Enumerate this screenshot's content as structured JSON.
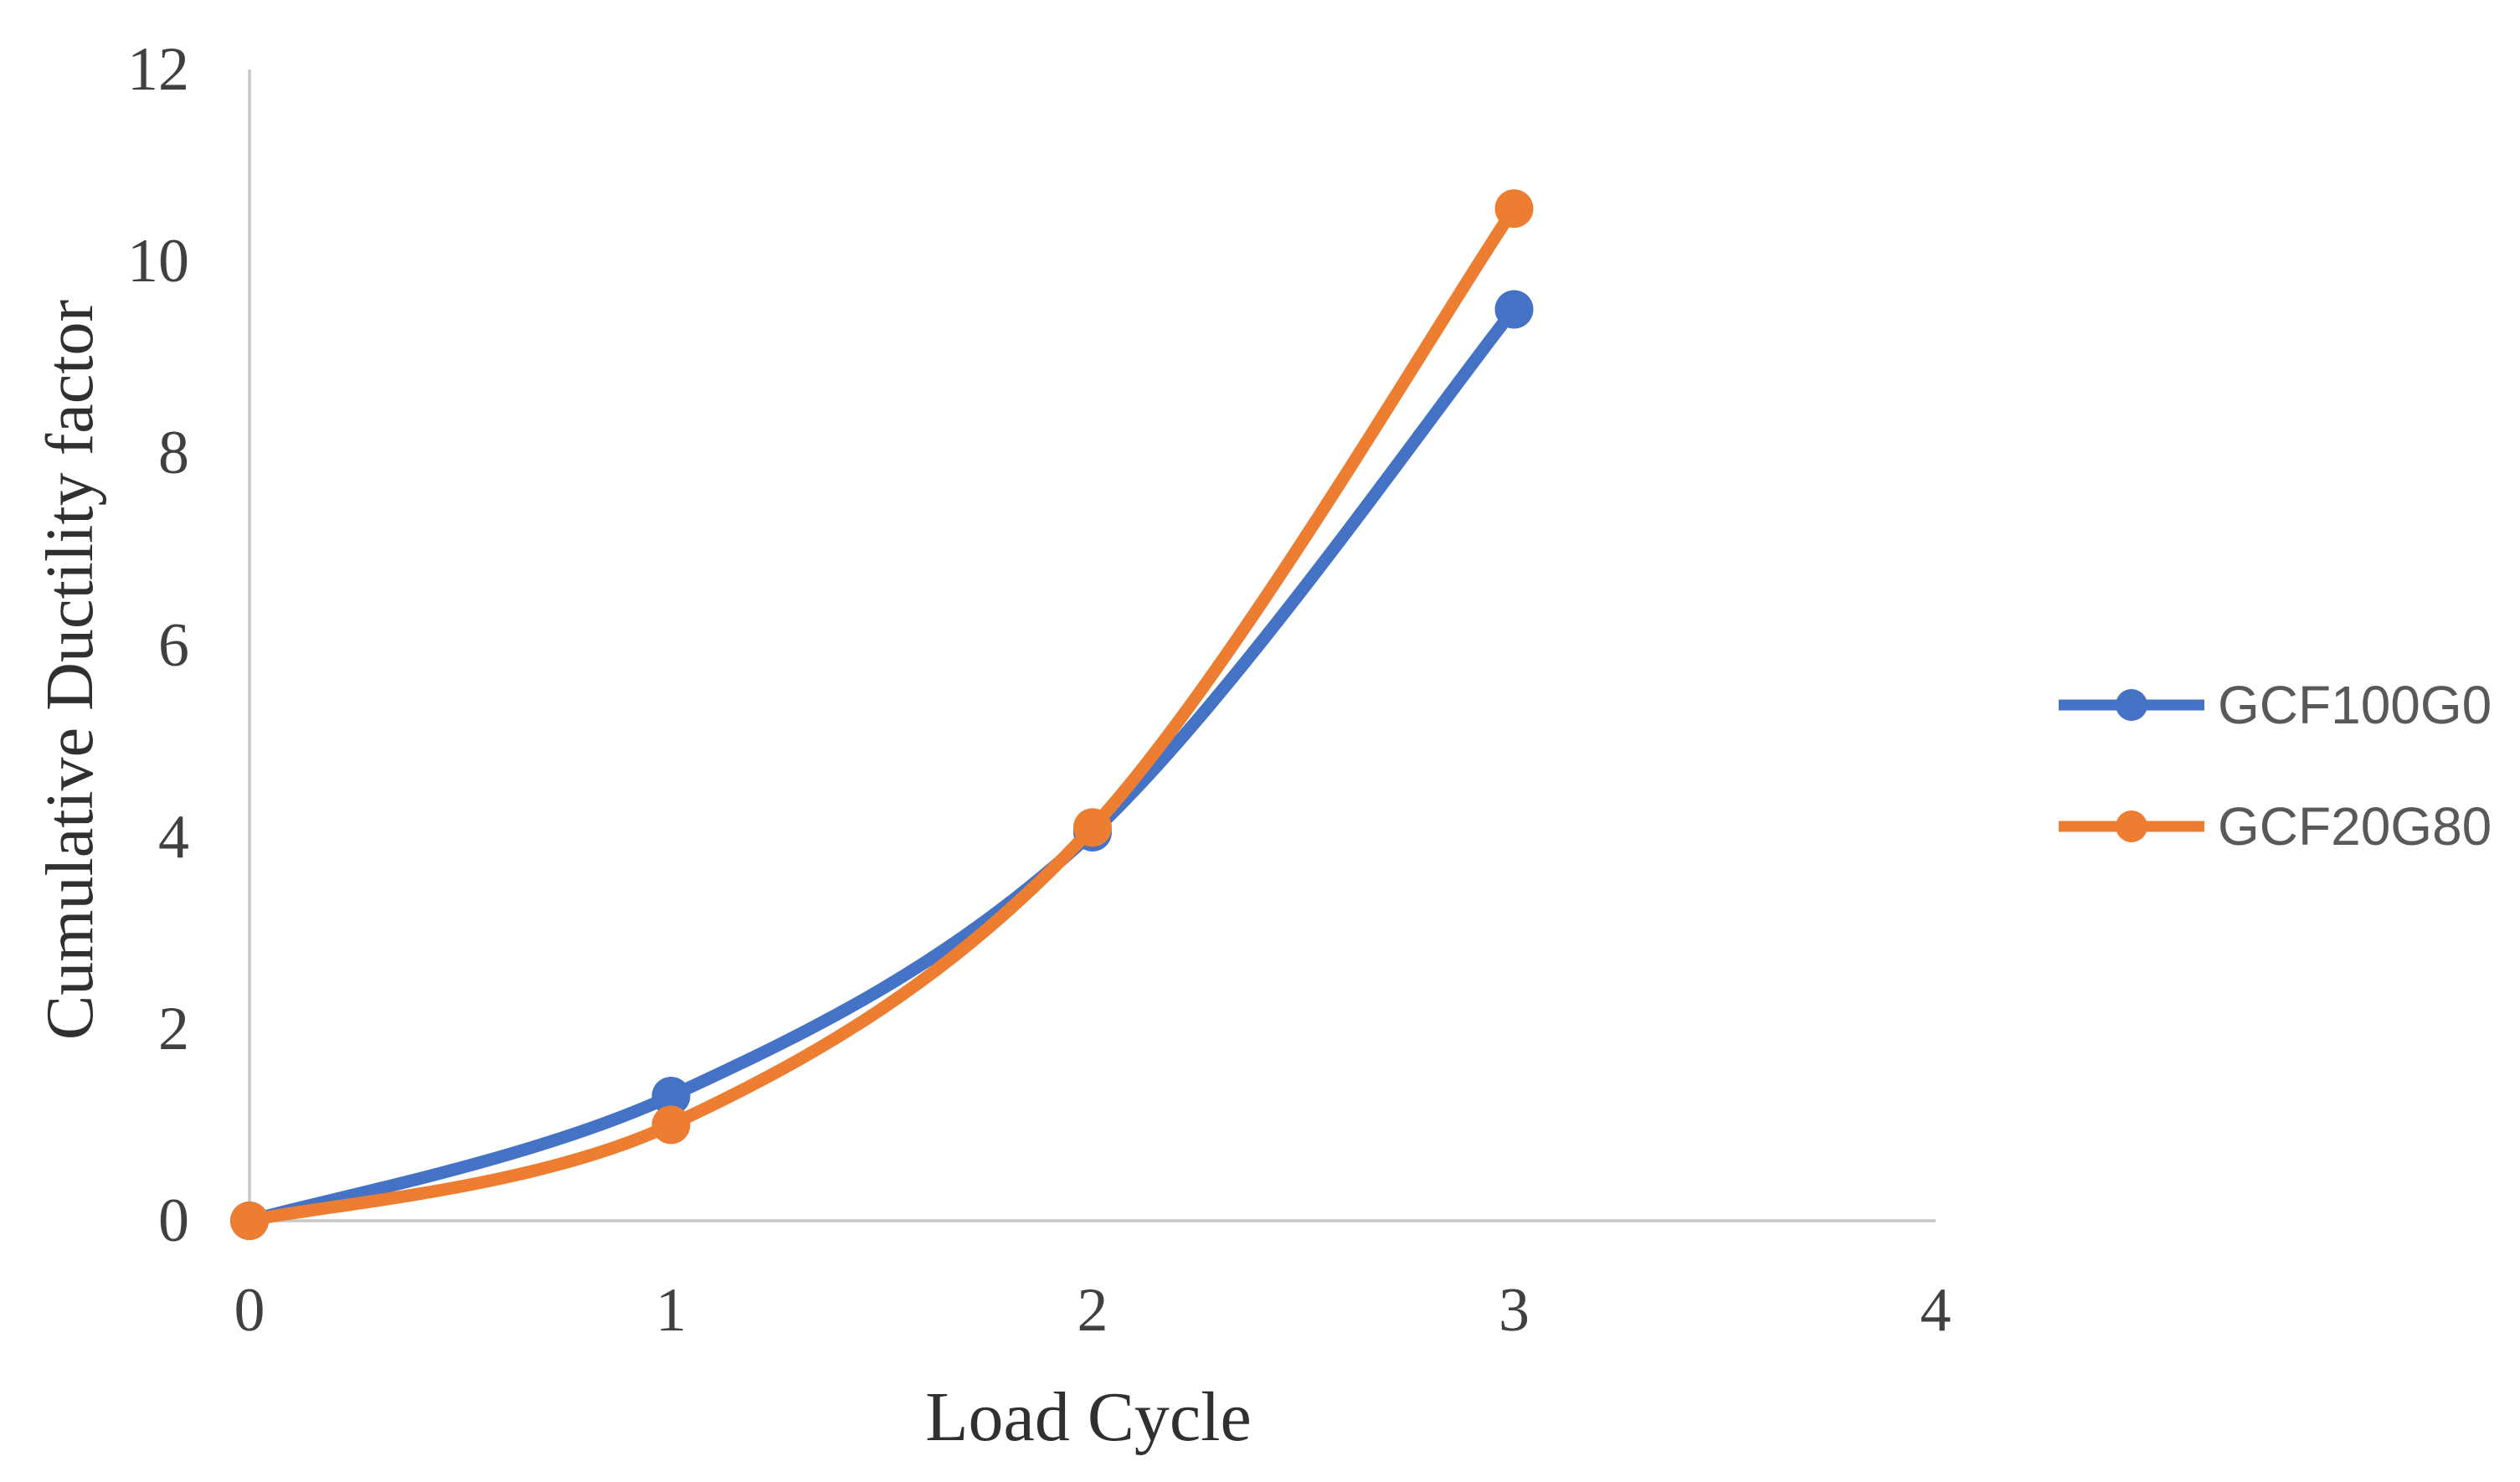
{
  "figure": {
    "background": "#ffffff"
  },
  "chart_data": {
    "type": "line",
    "subtype": "smooth-line-with-markers",
    "title": "",
    "xlabel": "Load Cycle",
    "ylabel": "Cumulative Ductility factor",
    "x": [
      0,
      1,
      2,
      3
    ],
    "series": [
      {
        "name": "GCF100G0",
        "color": "#4472C4",
        "values": [
          0,
          1.3,
          4.05,
          9.5
        ]
      },
      {
        "name": "GCF20G80",
        "color": "#ED7D31",
        "values": [
          0,
          1.0,
          4.1,
          10.55
        ]
      }
    ],
    "xticks": [
      0,
      1,
      2,
      3,
      4
    ],
    "yticks": [
      0,
      2,
      4,
      6,
      8,
      10,
      12
    ],
    "xlim": [
      0,
      4
    ],
    "ylim": [
      0,
      12
    ],
    "grid": false,
    "legend_position": "right",
    "marker": "circle",
    "colors": {
      "axis_line": "#c7c7c7",
      "tick_label": "#404040",
      "axis_title": "#303030",
      "legend_text": "#595959"
    }
  }
}
